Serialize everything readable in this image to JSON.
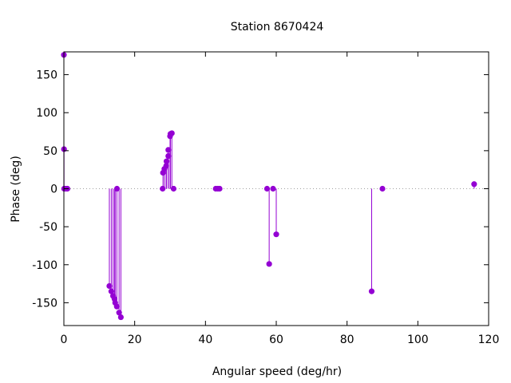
{
  "chart_data": {
    "type": "scatter",
    "style": "impulses-with-points",
    "title": "Station 8670424",
    "xlabel": "Angular speed (deg/hr)",
    "ylabel": "Phase (deg)",
    "xlim": [
      0,
      120
    ],
    "ylim": [
      -180,
      180
    ],
    "xticks": [
      0,
      20,
      40,
      60,
      80,
      100,
      120
    ],
    "yticks": [
      -150,
      -100,
      -50,
      0,
      50,
      100,
      150
    ],
    "zero_line": true,
    "grid": false,
    "color": "#9400d3",
    "points": [
      {
        "x": 0.0,
        "y": 176
      },
      {
        "x": 0.04,
        "y": 52
      },
      {
        "x": 0.08,
        "y": 0
      },
      {
        "x": 0.5,
        "y": 0
      },
      {
        "x": 1.0,
        "y": 0
      },
      {
        "x": 12.85,
        "y": -128
      },
      {
        "x": 13.4,
        "y": -135
      },
      {
        "x": 13.9,
        "y": -141
      },
      {
        "x": 14.3,
        "y": -145
      },
      {
        "x": 14.5,
        "y": -150
      },
      {
        "x": 14.96,
        "y": -155
      },
      {
        "x": 15.0,
        "y": 0
      },
      {
        "x": 15.6,
        "y": -163
      },
      {
        "x": 16.1,
        "y": -169
      },
      {
        "x": 27.9,
        "y": 0
      },
      {
        "x": 28.0,
        "y": 21
      },
      {
        "x": 28.4,
        "y": 26
      },
      {
        "x": 28.9,
        "y": 30
      },
      {
        "x": 29.0,
        "y": 36
      },
      {
        "x": 29.5,
        "y": 43
      },
      {
        "x": 29.5,
        "y": 51
      },
      {
        "x": 30.0,
        "y": 69
      },
      {
        "x": 30.1,
        "y": 72
      },
      {
        "x": 30.5,
        "y": 73
      },
      {
        "x": 31.0,
        "y": 0
      },
      {
        "x": 42.9,
        "y": 0
      },
      {
        "x": 43.5,
        "y": 0
      },
      {
        "x": 44.0,
        "y": 0
      },
      {
        "x": 57.4,
        "y": 0
      },
      {
        "x": 58.0,
        "y": -99
      },
      {
        "x": 59.1,
        "y": 0
      },
      {
        "x": 60.0,
        "y": -60
      },
      {
        "x": 86.95,
        "y": -135
      },
      {
        "x": 90.0,
        "y": 0
      },
      {
        "x": 115.9,
        "y": 6
      }
    ]
  }
}
